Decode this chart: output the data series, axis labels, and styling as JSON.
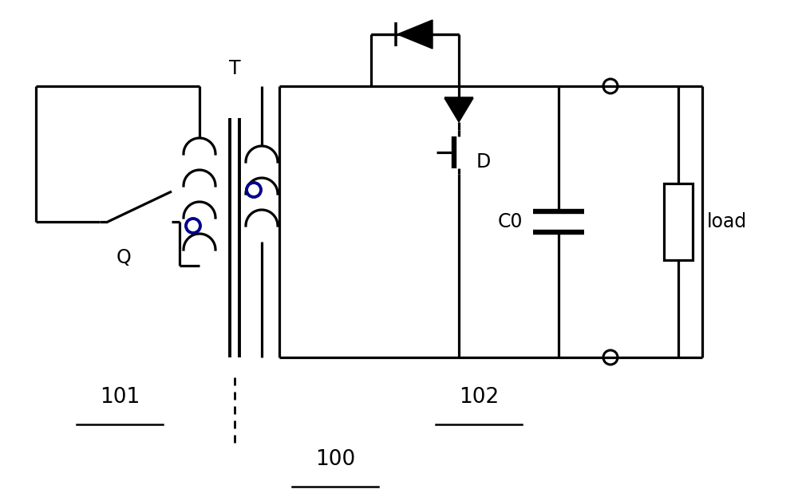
{
  "bg_color": "#ffffff",
  "line_color": "#000000",
  "dot_color": "#00008B",
  "label_101": "101",
  "label_102": "102",
  "label_100": "100",
  "label_T": "T",
  "label_Q": "Q",
  "label_D": "D",
  "label_C0": "C0",
  "label_load": "load",
  "figsize": [
    10.0,
    6.28
  ],
  "dpi": 100,
  "lw": 2.3
}
